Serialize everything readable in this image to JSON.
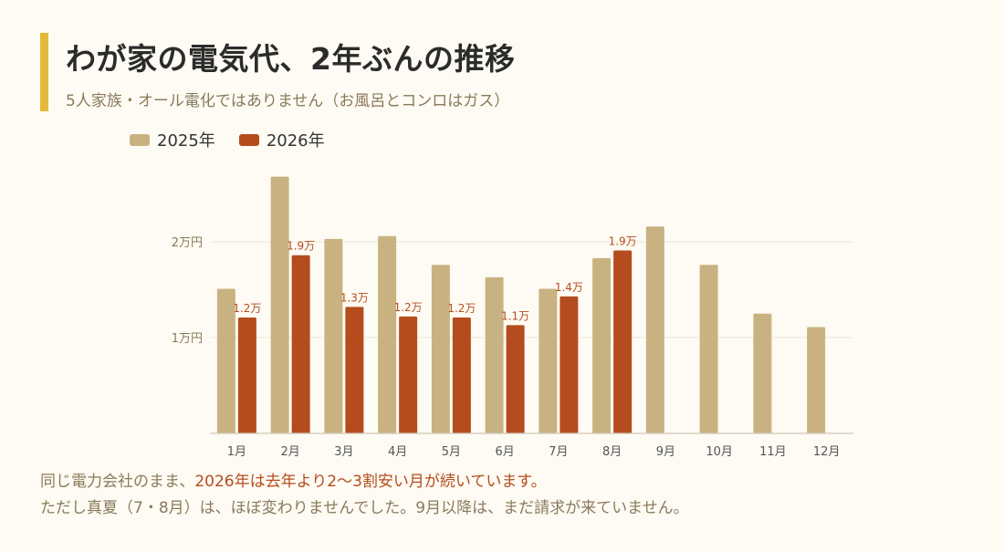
{
  "header": {
    "title": "わが家の電気代、2年ぶんの推移",
    "subtitle": "5人家族・オール電化ではありません（お風呂とコンロはガス）"
  },
  "colors": {
    "accent": "#e2b93b",
    "series_2025": "#c9b282",
    "series_2026": "#b54c1e"
  },
  "chart_data": {
    "type": "bar",
    "categories": [
      "1月",
      "2月",
      "3月",
      "4月",
      "5月",
      "6月",
      "7月",
      "8月",
      "9月",
      "10月",
      "11月",
      "12月"
    ],
    "series": [
      {
        "name": "2025年",
        "values": [
          15100,
          26800,
          20300,
          20600,
          17600,
          16300,
          15100,
          18300,
          21600,
          17600,
          12500,
          11100
        ]
      },
      {
        "name": "2026年",
        "values": [
          12100,
          18600,
          13200,
          12200,
          12100,
          11300,
          14300,
          19100,
          null,
          null,
          null,
          null
        ],
        "labels": [
          "1.2万",
          "1.9万",
          "1.3万",
          "1.2万",
          "1.2万",
          "1.1万",
          "1.4万",
          "1.9万",
          "",
          "",
          "",
          ""
        ]
      }
    ],
    "yticks": [
      {
        "value": 10000,
        "label": "1万円"
      },
      {
        "value": 20000,
        "label": "2万円"
      }
    ],
    "ylim": [
      0,
      30000
    ],
    "grid": true,
    "legend_position": "top-left"
  },
  "notes": {
    "line1_prefix": "同じ電力会社のまま、",
    "line1_highlight": "2026年は去年より2〜3割安い月が続いています。",
    "line2": "ただし真夏（7・8月）は、ほぼ変わりませんでした。9月以降は、まだ請求が来ていません。"
  }
}
